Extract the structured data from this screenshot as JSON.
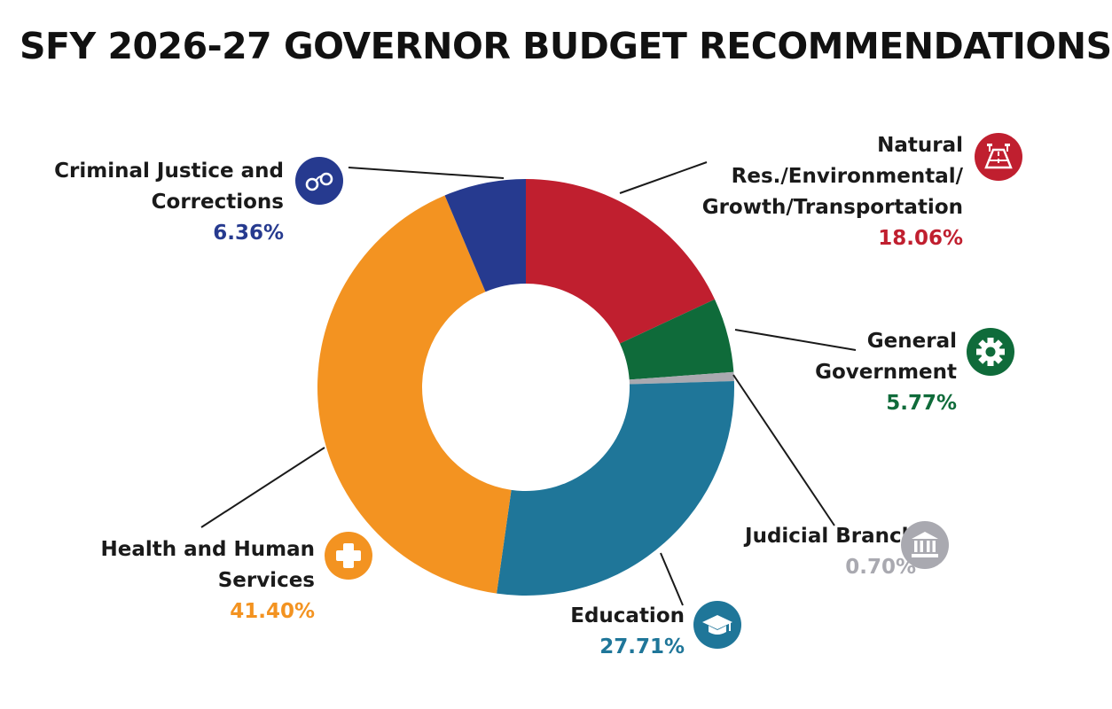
{
  "title": "SFY 2026-27 GOVERNOR BUDGET RECOMMENDATIONS",
  "chart_data": {
    "type": "pie",
    "style": "donut",
    "title": "SFY 2026-27 GOVERNOR BUDGET RECOMMENDATIONS",
    "start": "top, clockwise",
    "slices": [
      {
        "name_lines": [
          "Natural",
          "Res./Environmental/",
          "Growth/Transportation"
        ],
        "value": 18.06,
        "label": "18.06%",
        "color": "#c01f2f",
        "icon": "highway-icon"
      },
      {
        "name_lines": [
          "General",
          "Government"
        ],
        "value": 5.77,
        "label": "5.77%",
        "color": "#0f6b3a",
        "icon": "gear-icon"
      },
      {
        "name_lines": [
          "Judicial Branch"
        ],
        "value": 0.7,
        "label": "0.70%",
        "color": "#a9a9b0",
        "icon": "courthouse-icon"
      },
      {
        "name_lines": [
          "Education"
        ],
        "value": 27.71,
        "label": "27.71%",
        "color": "#1f7699",
        "icon": "graduation-cap-icon"
      },
      {
        "name_lines": [
          "Health and Human",
          "Services"
        ],
        "value": 41.4,
        "label": "41.40%",
        "color": "#f39321",
        "icon": "medical-cross-icon"
      },
      {
        "name_lines": [
          "Criminal Justice and",
          "Corrections"
        ],
        "value": 6.36,
        "label": "6.36%",
        "color": "#263a8f",
        "icon": "handcuffs-icon"
      }
    ]
  }
}
